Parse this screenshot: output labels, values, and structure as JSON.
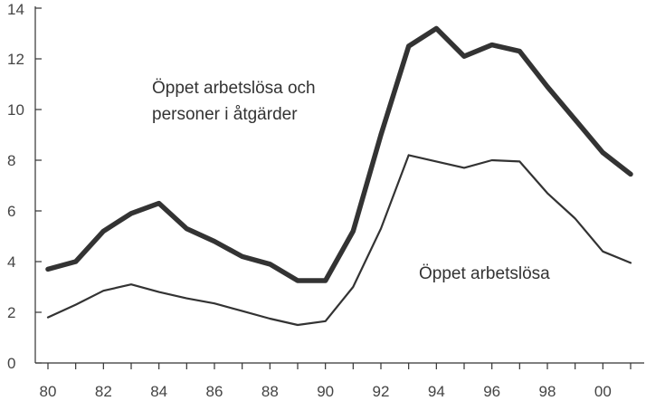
{
  "chart_data": {
    "type": "line",
    "title": "",
    "xlabel": "",
    "ylabel": "",
    "x": [
      1980,
      1981,
      1982,
      1983,
      1984,
      1985,
      1986,
      1987,
      1988,
      1989,
      1990,
      1991,
      1992,
      1993,
      1994,
      1995,
      1996,
      1997,
      1998,
      1999,
      2000,
      2001
    ],
    "xlim": [
      1980,
      2001
    ],
    "ylim": [
      0,
      14
    ],
    "yticks": [
      0,
      2,
      4,
      6,
      8,
      10,
      12,
      14
    ],
    "xticks": [
      1980,
      1982,
      1984,
      1986,
      1988,
      1990,
      1992,
      1994,
      1996,
      1998,
      2000
    ],
    "xtick_labels": [
      "80",
      "82",
      "84",
      "86",
      "88",
      "90",
      "92",
      "94",
      "96",
      "98",
      "00"
    ],
    "grid": false,
    "legend": "none",
    "series": [
      {
        "name": "Öppet arbetslösa och personer i åtgärder",
        "name_lines": [
          "Öppet arbetslösa och",
          "personer i åtgärder"
        ],
        "style": "thick",
        "color": "#333333",
        "values": [
          3.7,
          4.0,
          5.2,
          5.9,
          6.3,
          5.3,
          4.8,
          4.2,
          3.9,
          3.25,
          3.25,
          5.2,
          9.0,
          12.5,
          13.2,
          12.1,
          12.55,
          12.3,
          10.9,
          9.6,
          8.3,
          7.45
        ]
      },
      {
        "name": "Öppet arbetslösa",
        "name_lines": [
          "Öppet arbetslösa"
        ],
        "style": "thin",
        "color": "#333333",
        "values": [
          1.8,
          2.3,
          2.85,
          3.1,
          2.8,
          2.55,
          2.35,
          2.05,
          1.75,
          1.5,
          1.65,
          3.0,
          5.3,
          8.2,
          7.95,
          7.7,
          8.0,
          7.95,
          6.7,
          5.7,
          4.4,
          3.95
        ]
      }
    ]
  }
}
